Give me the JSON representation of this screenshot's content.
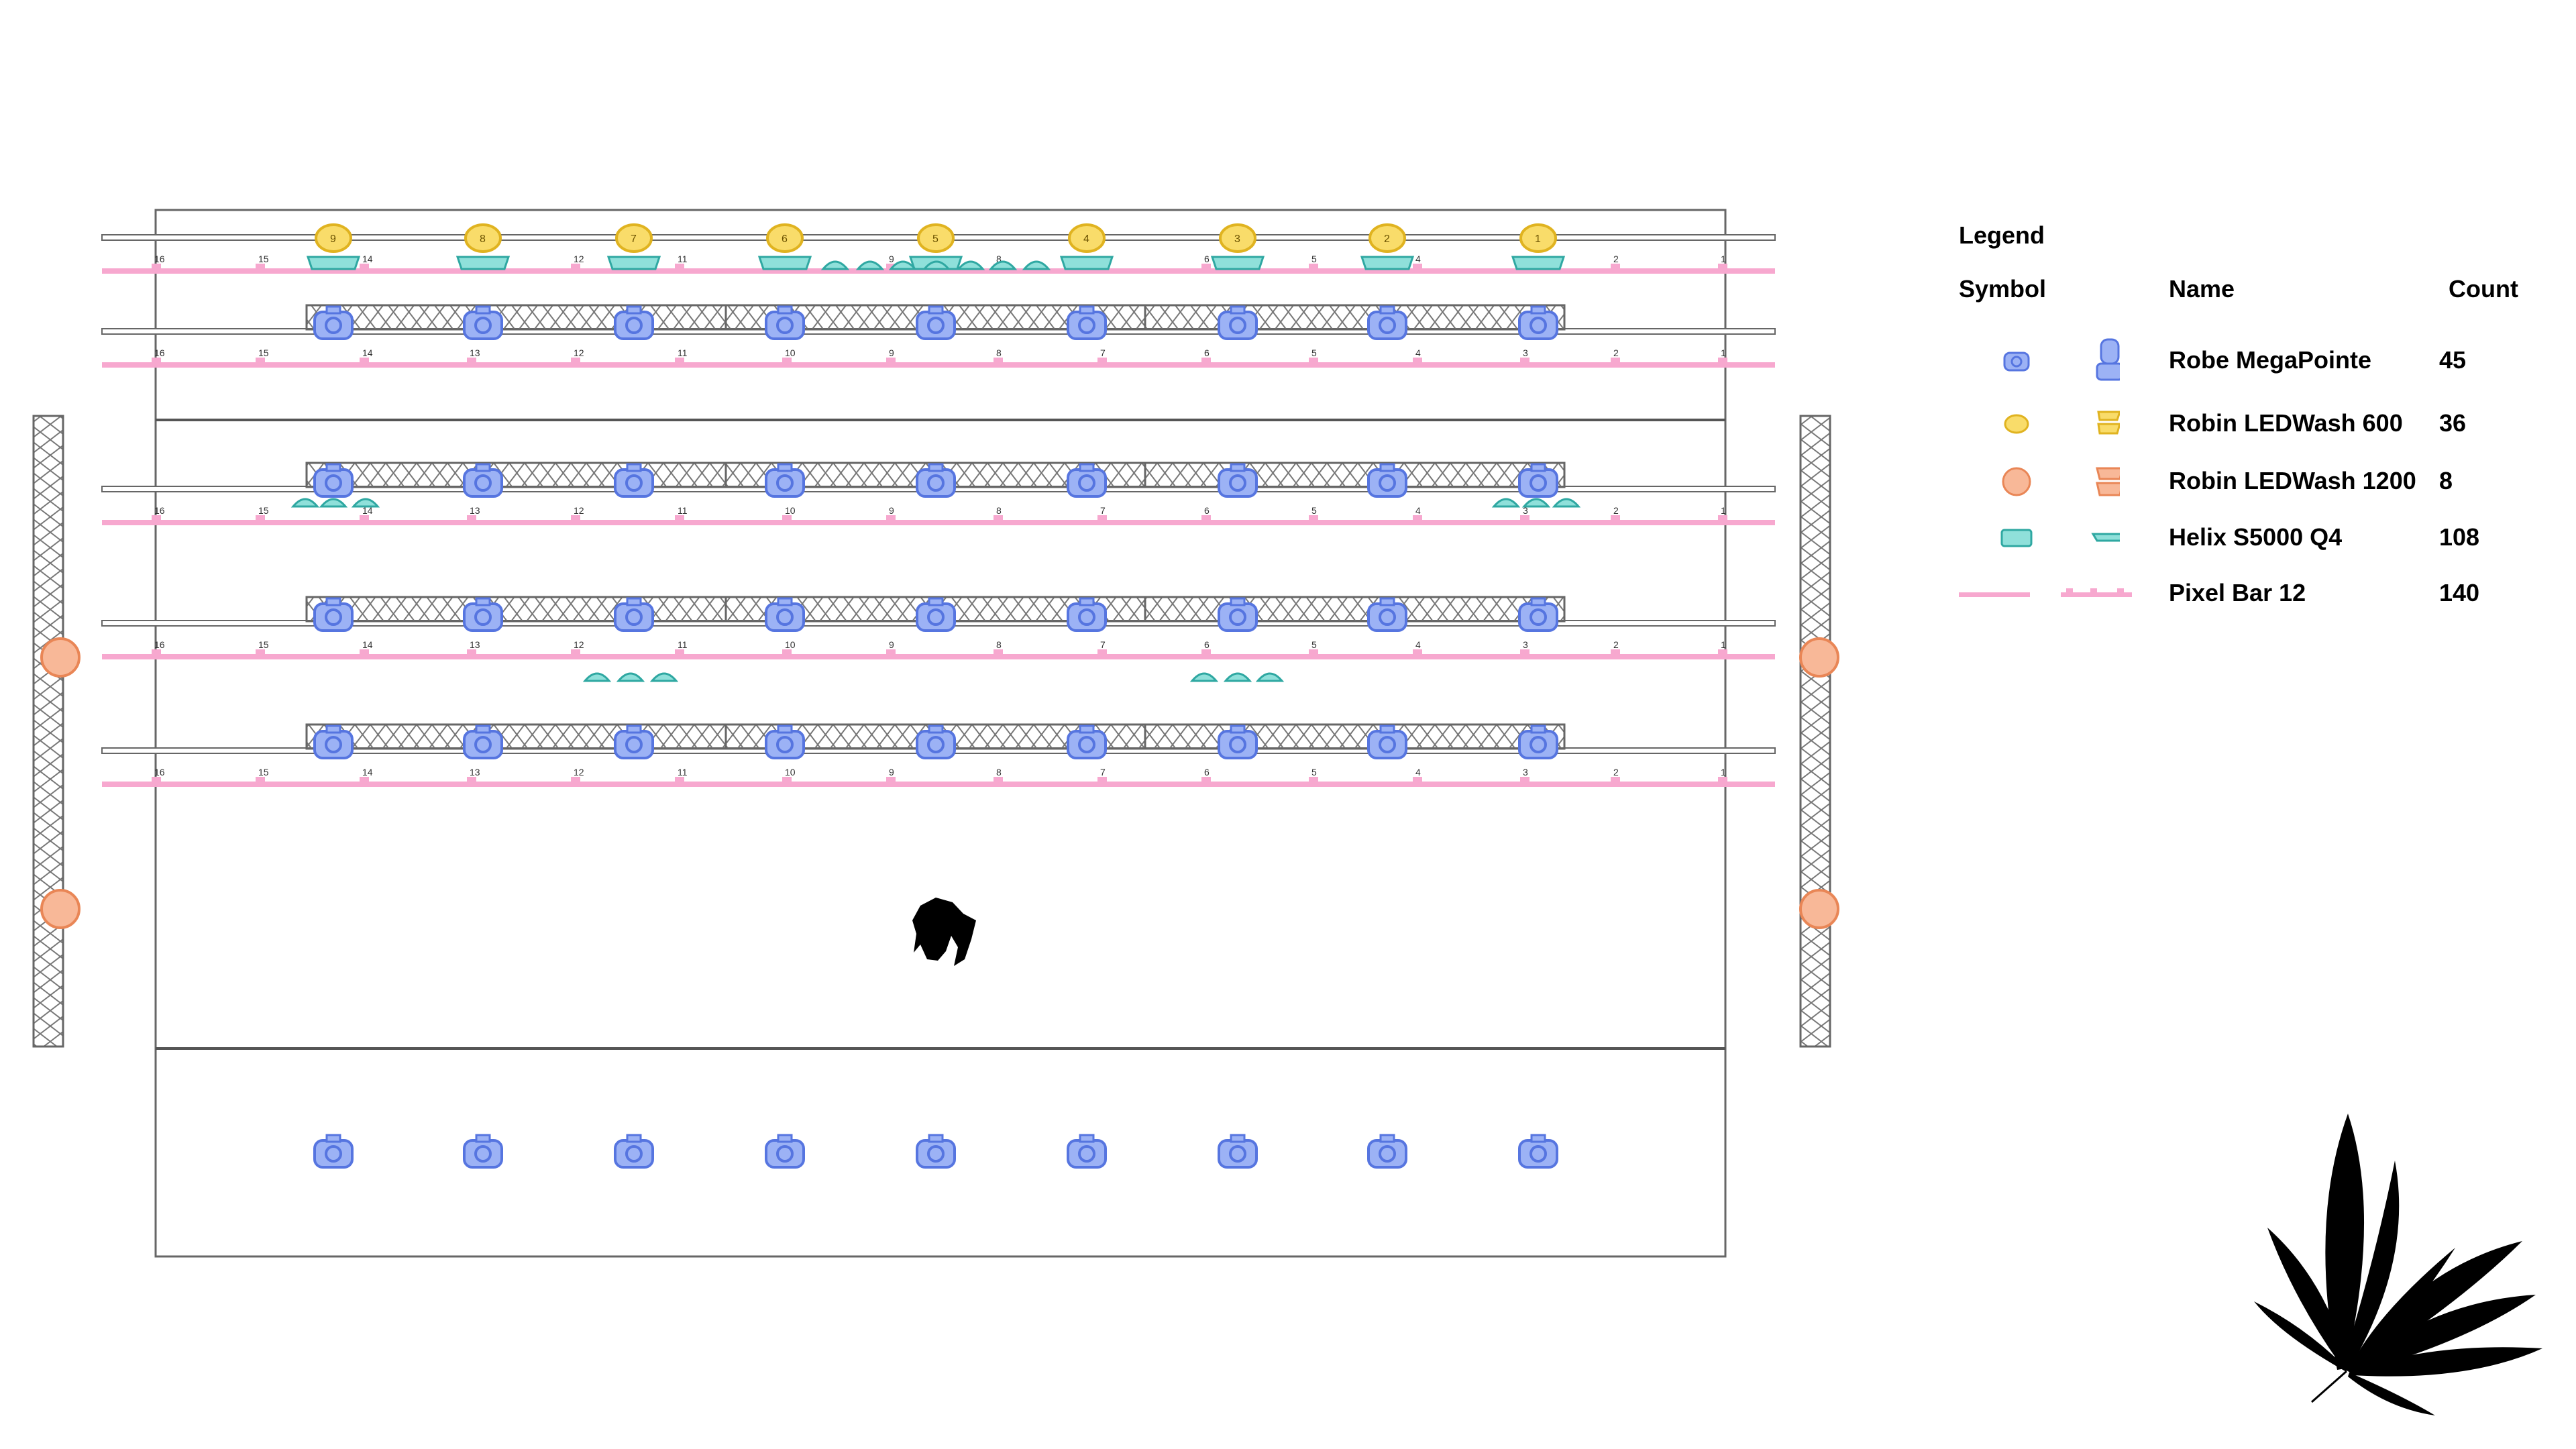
{
  "diagram": {
    "pipe_numbers": [
      "16",
      "15",
      "14",
      "13",
      "12",
      "11",
      "10",
      "9",
      "8",
      "7",
      "6",
      "5",
      "4",
      "3",
      "2",
      "1"
    ],
    "wash_numbers": [
      "9",
      "8",
      "7",
      "6",
      "5",
      "4",
      "3",
      "2",
      "1"
    ],
    "helix_numbers": [
      "15",
      "14",
      "13",
      "12",
      "11",
      "10",
      "9",
      "8",
      "7",
      "6",
      "5",
      "4",
      "3",
      "2",
      "1"
    ]
  },
  "legend": {
    "title": "Legend",
    "headers": {
      "symbol": "Symbol",
      "name": "Name",
      "count": "Count"
    },
    "items": [
      {
        "name": "Robe MegaPointe",
        "count": "45",
        "color": "#6f8ff0",
        "icon": "moving-head-icon"
      },
      {
        "name": "Robin LEDWash 600",
        "count": "36",
        "color": "#f5cf3c",
        "icon": "wash-600-icon"
      },
      {
        "name": "Robin LEDWash 1200",
        "count": "8",
        "color": "#f4a47c",
        "icon": "wash-1200-icon"
      },
      {
        "name": "Helix S5000 Q4",
        "count": "108",
        "color": "#53c8c2",
        "icon": "helix-icon"
      },
      {
        "name": "Pixel Bar 12",
        "count": "140",
        "color": "#f7a8cf",
        "icon": "pixel-bar-icon"
      }
    ]
  },
  "colors": {
    "megapointe": "#6f8ff0",
    "ledwash600": "#f5cf3c",
    "ledwash1200": "#f4a47c",
    "helix": "#53c8c2",
    "pixelbar": "#f7a8cf",
    "line": "#555555"
  }
}
